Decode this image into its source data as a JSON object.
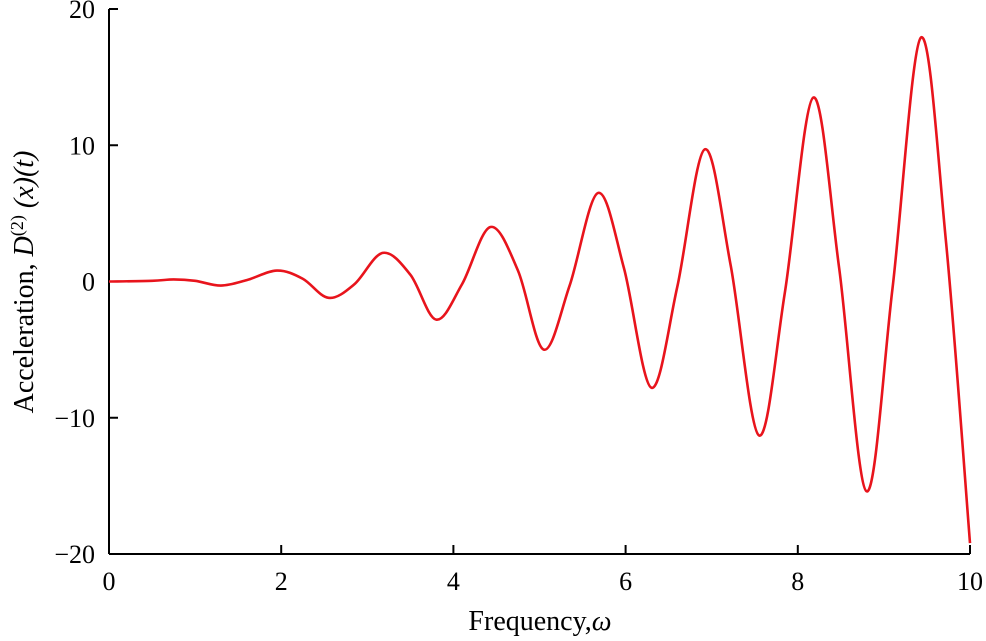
{
  "chart_data": {
    "type": "line",
    "title": "",
    "xlabel_text": "Frequency,",
    "xlabel_symbol": "ω",
    "ylabel_text": "Acceleration, ",
    "ylabel_D": "D",
    "ylabel_sup": "(2)",
    "ylabel_rest": " (x)(t)",
    "xlim": [
      0,
      10
    ],
    "ylim": [
      -20,
      20
    ],
    "xticks": [
      "0",
      "2",
      "4",
      "6",
      "8",
      "10"
    ],
    "yticks": [
      "20",
      "10",
      "0",
      "−10",
      "−20"
    ],
    "grid": false,
    "legend": "none",
    "color": "#e8141c",
    "series": [
      {
        "x": [
          0,
          0.5,
          0.75,
          1.0,
          1.3,
          1.6,
          1.95,
          2.25,
          2.55,
          2.85,
          3.18,
          3.5,
          3.8,
          4.1,
          4.43,
          4.75,
          5.05,
          5.35,
          5.68,
          5.98,
          6.3,
          6.6,
          6.92,
          7.22,
          7.55,
          7.85,
          8.18,
          8.48,
          8.8,
          9.1,
          9.43,
          9.72,
          10.0
        ],
        "y": [
          0,
          0.05,
          0.15,
          0.05,
          -0.3,
          0.1,
          0.8,
          0.2,
          -1.2,
          -0.2,
          2.1,
          0.5,
          -2.8,
          -0.2,
          4.0,
          0.8,
          -5.0,
          -0.3,
          6.5,
          1.0,
          -7.8,
          -0.4,
          9.7,
          1.2,
          -11.3,
          -0.8,
          13.5,
          1.0,
          -15.4,
          -0.5,
          17.9,
          3.0,
          -19.2
        ]
      }
    ]
  }
}
